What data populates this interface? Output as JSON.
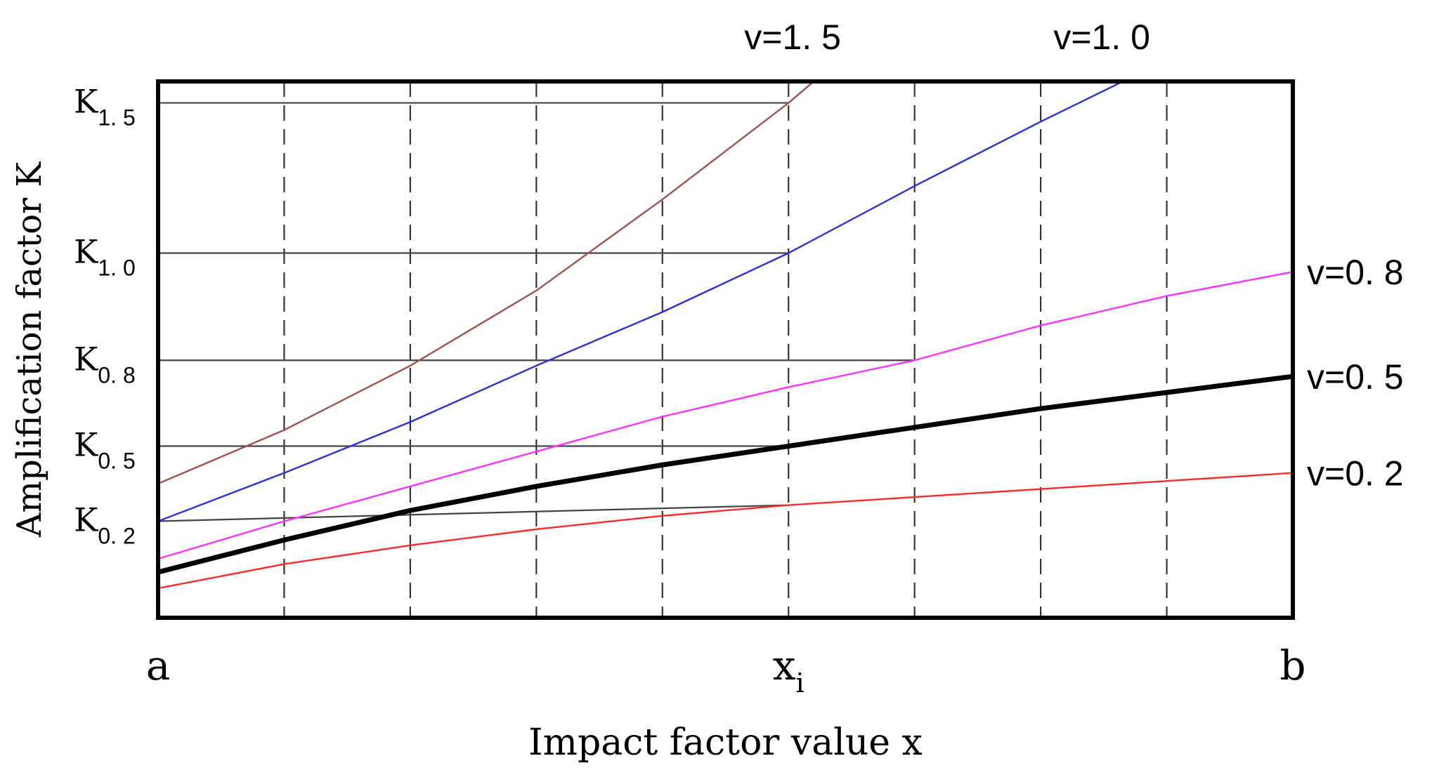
{
  "chart_data": {
    "type": "line",
    "xlabel": "Impact factor value x",
    "ylabel": "Amplification factor K",
    "x_ticks": [
      {
        "label": "a",
        "sub": "",
        "x": 0
      },
      {
        "label": "x",
        "sub": "i",
        "x": 5
      },
      {
        "label": "b",
        "sub": "",
        "x": 9
      }
    ],
    "y_ticks": [
      {
        "label": "K",
        "sub": "1. 5",
        "y": 0.96
      },
      {
        "label": "K",
        "sub": "1. 0",
        "y": 0.68
      },
      {
        "label": "K",
        "sub": "0. 8",
        "y": 0.48
      },
      {
        "label": "K",
        "sub": "0. 5",
        "y": 0.32
      },
      {
        "label": "K",
        "sub": "0. 2",
        "y": 0.18
      }
    ],
    "xlim": [
      0,
      9
    ],
    "ylim": [
      0,
      1
    ],
    "vertical_gridlines": [
      1,
      2,
      3,
      4,
      5,
      6,
      7,
      8
    ],
    "horizontal_reference_lines": [
      {
        "y0": 0.96,
        "y1": 0.96,
        "x_end": 5
      },
      {
        "y0": 0.68,
        "y1": 0.68,
        "x_end": 5
      },
      {
        "y0": 0.48,
        "y1": 0.48,
        "x_end": 6
      },
      {
        "y0": 0.32,
        "y1": 0.32,
        "x_end": 5
      },
      {
        "y0": 0.18,
        "y1": 0.21,
        "x_end": 5
      }
    ],
    "series": [
      {
        "name": "v=0. 2",
        "color": "#ff2a2a",
        "bold": false,
        "x": [
          0,
          1,
          2,
          3,
          4,
          5,
          6,
          7,
          8,
          9
        ],
        "y": [
          0.055,
          0.1,
          0.135,
          0.165,
          0.19,
          0.21,
          0.225,
          0.24,
          0.255,
          0.27
        ]
      },
      {
        "name": "v=0. 5",
        "color": "#000000",
        "bold": true,
        "x": [
          0,
          1,
          2,
          3,
          4,
          5,
          6,
          7,
          8,
          9
        ],
        "y": [
          0.085,
          0.145,
          0.2,
          0.245,
          0.285,
          0.32,
          0.355,
          0.39,
          0.42,
          0.45
        ]
      },
      {
        "name": "v=0. 8",
        "color": "#ff33ff",
        "bold": false,
        "x": [
          0,
          1,
          2,
          3,
          4,
          5,
          6,
          7,
          8,
          9
        ],
        "y": [
          0.11,
          0.18,
          0.245,
          0.31,
          0.375,
          0.43,
          0.48,
          0.545,
          0.6,
          0.645
        ]
      },
      {
        "name": "v=1. 0",
        "color": "#2e2edb",
        "bold": false,
        "x": [
          0,
          1,
          2,
          3,
          4,
          5,
          6,
          7,
          8,
          8.75
        ],
        "y": [
          0.18,
          0.27,
          0.365,
          0.47,
          0.57,
          0.68,
          0.805,
          0.925,
          1.04,
          1.0
        ]
      },
      {
        "name": "v=1. 5",
        "color": "#a0504e",
        "bold": false,
        "x": [
          0,
          1,
          2,
          3,
          4,
          5,
          5.2
        ],
        "y": [
          0.25,
          0.35,
          0.47,
          0.61,
          0.78,
          0.96,
          1.0
        ]
      }
    ],
    "series_labels": [
      {
        "series": "v=1. 5",
        "position": "top"
      },
      {
        "series": "v=1. 0",
        "position": "top"
      },
      {
        "series": "v=0. 8",
        "position": "right"
      },
      {
        "series": "v=0. 5",
        "position": "right"
      },
      {
        "series": "v=0. 2",
        "position": "right"
      }
    ],
    "grid": "dashed vertical",
    "legend": "inline labels"
  }
}
